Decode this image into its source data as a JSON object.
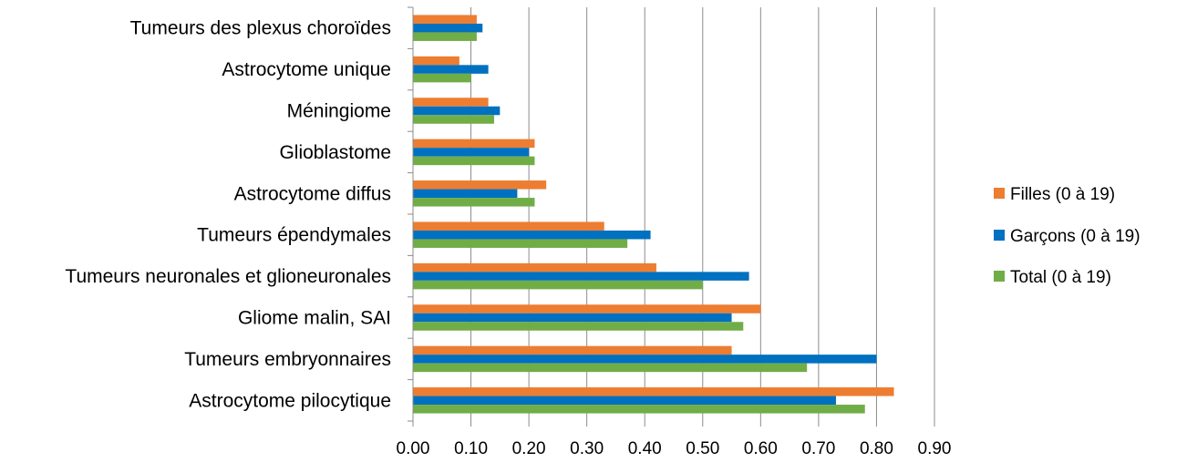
{
  "chart_data": {
    "type": "bar",
    "orientation": "horizontal",
    "categories": [
      "Tumeurs des plexus choroïdes",
      "Astrocytome unique",
      "Méningiome",
      "Glioblastome",
      "Astrocytome diffus",
      "Tumeurs épendymales",
      "Tumeurs neuronales et glioneuronales",
      "Gliome malin, SAI",
      "Tumeurs embryonnaires",
      "Astrocytome pilocytique"
    ],
    "series": [
      {
        "name": "Filles (0 à 19)",
        "color": "#ED7D31",
        "values": [
          0.11,
          0.08,
          0.13,
          0.21,
          0.23,
          0.33,
          0.42,
          0.6,
          0.55,
          0.83
        ]
      },
      {
        "name": "Garçons (0 à 19)",
        "color": "#0070C0",
        "values": [
          0.12,
          0.13,
          0.15,
          0.2,
          0.18,
          0.41,
          0.58,
          0.55,
          0.8,
          0.73
        ]
      },
      {
        "name": "Total (0 à 19)",
        "color": "#70AD47",
        "values": [
          0.11,
          0.1,
          0.14,
          0.21,
          0.21,
          0.37,
          0.5,
          0.57,
          0.68,
          0.78
        ]
      }
    ],
    "xlim": [
      0,
      0.9
    ],
    "x_ticks": [
      "0.00",
      "0.10",
      "0.20",
      "0.30",
      "0.40",
      "0.50",
      "0.60",
      "0.70",
      "0.80",
      "0.90"
    ],
    "title": "",
    "xlabel": "",
    "ylabel": "",
    "grid": "vertical",
    "legend_position": "right"
  }
}
